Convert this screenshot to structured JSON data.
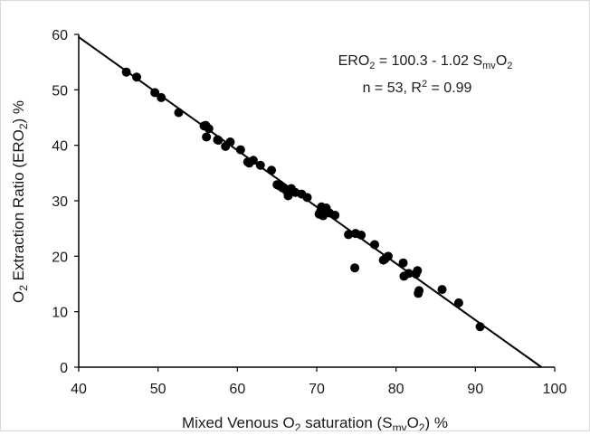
{
  "chart_data": {
    "type": "scatter",
    "xlabel": {
      "main": "Mixed Venous O",
      "sub1": "2",
      "mid": " saturation (S",
      "sub2": "mv",
      "o": "O",
      "sub3": "2",
      "end": ") %"
    },
    "ylabel": {
      "main": "O",
      "sub1": "2",
      "mid": " Extraction Ratio (ERO",
      "sub2": "2",
      "end": ") %"
    },
    "xlim": [
      40,
      100
    ],
    "ylim": [
      0,
      60
    ],
    "xticks": [
      40,
      50,
      60,
      70,
      80,
      90,
      100
    ],
    "yticks": [
      0,
      10,
      20,
      30,
      40,
      50,
      60
    ],
    "grid": false,
    "regression": {
      "intercept": 100.3,
      "slope": -1.02
    },
    "annotation": {
      "eq_a": "ERO",
      "eq_a_sub": "2",
      "eq_b": " = 100.3 - 1.02 S",
      "eq_b_sub": "mv",
      "eq_c": "O",
      "eq_c_sub": "2",
      "stats_a": "n = 53, R",
      "stats_sup": "2",
      "stats_b": " = 0.99"
    },
    "points": [
      {
        "x": 46.0,
        "y": 53.2
      },
      {
        "x": 47.3,
        "y": 52.3
      },
      {
        "x": 49.6,
        "y": 49.5
      },
      {
        "x": 50.4,
        "y": 48.6
      },
      {
        "x": 52.6,
        "y": 45.9
      },
      {
        "x": 56.0,
        "y": 43.6
      },
      {
        "x": 56.4,
        "y": 43.0
      },
      {
        "x": 56.1,
        "y": 41.5
      },
      {
        "x": 57.5,
        "y": 41.0
      },
      {
        "x": 58.5,
        "y": 39.8
      },
      {
        "x": 59.1,
        "y": 40.6
      },
      {
        "x": 60.4,
        "y": 39.2
      },
      {
        "x": 61.5,
        "y": 36.8
      },
      {
        "x": 62.0,
        "y": 37.3
      },
      {
        "x": 62.9,
        "y": 36.4
      },
      {
        "x": 64.3,
        "y": 35.5
      },
      {
        "x": 65.0,
        "y": 32.9
      },
      {
        "x": 65.7,
        "y": 32.3
      },
      {
        "x": 66.2,
        "y": 31.8
      },
      {
        "x": 66.4,
        "y": 30.9
      },
      {
        "x": 66.8,
        "y": 32.2
      },
      {
        "x": 67.3,
        "y": 31.5
      },
      {
        "x": 68.1,
        "y": 31.2
      },
      {
        "x": 68.8,
        "y": 30.6
      },
      {
        "x": 70.3,
        "y": 27.6
      },
      {
        "x": 70.6,
        "y": 28.9
      },
      {
        "x": 70.8,
        "y": 27.3
      },
      {
        "x": 71.2,
        "y": 28.7
      },
      {
        "x": 71.6,
        "y": 27.8
      },
      {
        "x": 72.3,
        "y": 27.4
      },
      {
        "x": 74.0,
        "y": 23.9
      },
      {
        "x": 74.9,
        "y": 24.1
      },
      {
        "x": 75.6,
        "y": 23.8
      },
      {
        "x": 74.8,
        "y": 17.9
      },
      {
        "x": 77.3,
        "y": 22.1
      },
      {
        "x": 78.4,
        "y": 19.3
      },
      {
        "x": 79.0,
        "y": 20.0
      },
      {
        "x": 80.9,
        "y": 18.8
      },
      {
        "x": 81.0,
        "y": 16.4
      },
      {
        "x": 81.6,
        "y": 16.9
      },
      {
        "x": 82.5,
        "y": 16.8
      },
      {
        "x": 82.7,
        "y": 17.4
      },
      {
        "x": 82.8,
        "y": 13.3
      },
      {
        "x": 82.9,
        "y": 13.8
      },
      {
        "x": 85.8,
        "y": 14.0
      },
      {
        "x": 87.9,
        "y": 11.6
      },
      {
        "x": 90.6,
        "y": 7.3
      },
      {
        "x": 55.8,
        "y": 43.5
      },
      {
        "x": 57.6,
        "y": 40.9
      },
      {
        "x": 61.3,
        "y": 37.0
      },
      {
        "x": 65.3,
        "y": 32.7
      },
      {
        "x": 70.5,
        "y": 28.2
      },
      {
        "x": 78.6,
        "y": 19.5
      }
    ]
  }
}
